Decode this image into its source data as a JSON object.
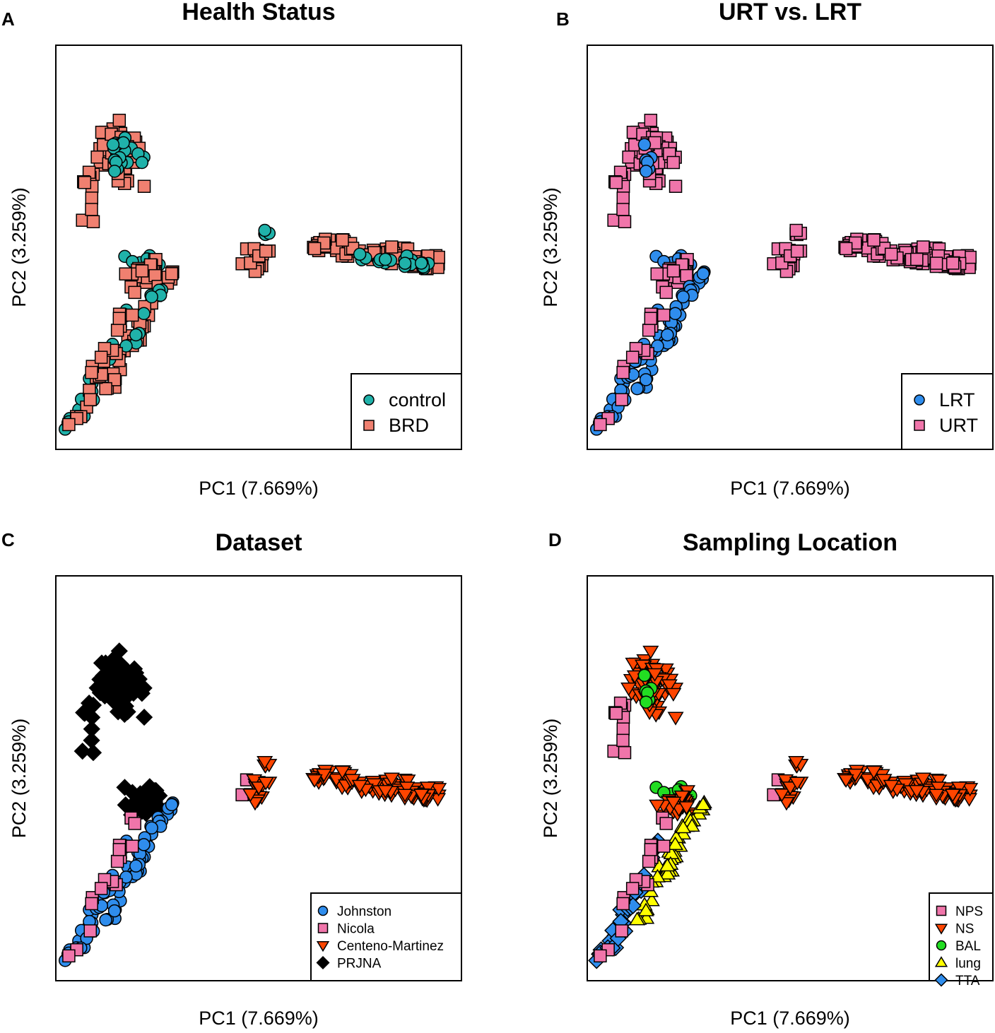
{
  "axes": {
    "xlabel": "PC1 (7.669%)",
    "ylabel": "PC2 (3.259%)"
  },
  "colors": {
    "control": "#20b2aa",
    "BRD": "#f08070",
    "LRT": "#2f8ded",
    "URT": "#f075aa",
    "Johnston": "#2f8ded",
    "Nicola": "#f075aa",
    "Centeno-Martinez": "#ff4500",
    "PRJNA": "#000000",
    "NPS": "#f075aa",
    "NS": "#ff4500",
    "BAL": "#22dd22",
    "lung": "#ffff00",
    "TTA": "#2f8ded"
  },
  "chart_data": [
    {
      "type": "scatter",
      "panel": "A",
      "title": "Health Status",
      "xlabel": "PC1 (7.669%)",
      "ylabel": "PC2 (3.259%)",
      "xlim": [
        0,
        100
      ],
      "ylim": [
        0,
        100
      ],
      "legend_position": "bottom-right",
      "series": [
        {
          "name": "control",
          "shape": "circle"
        },
        {
          "name": "BRD",
          "shape": "square"
        }
      ]
    },
    {
      "type": "scatter",
      "panel": "B",
      "title": "URT vs. LRT",
      "xlabel": "PC1 (7.669%)",
      "ylabel": "PC2 (3.259%)",
      "xlim": [
        0,
        100
      ],
      "ylim": [
        0,
        100
      ],
      "legend_position": "bottom-right",
      "series": [
        {
          "name": "LRT",
          "shape": "circle"
        },
        {
          "name": "URT",
          "shape": "square"
        }
      ]
    },
    {
      "type": "scatter",
      "panel": "C",
      "title": "Dataset",
      "xlabel": "PC1 (7.669%)",
      "ylabel": "PC2 (3.259%)",
      "xlim": [
        0,
        100
      ],
      "ylim": [
        0,
        100
      ],
      "legend_position": "bottom-right",
      "series": [
        {
          "name": "Johnston",
          "shape": "circle"
        },
        {
          "name": "Nicola",
          "shape": "square"
        },
        {
          "name": "Centeno-Martinez",
          "shape": "triangle-down"
        },
        {
          "name": "PRJNA",
          "shape": "diamond"
        }
      ]
    },
    {
      "type": "scatter",
      "panel": "D",
      "title": "Sampling Location",
      "xlabel": "PC1 (7.669%)",
      "ylabel": "PC2 (3.259%)",
      "xlim": [
        0,
        100
      ],
      "ylim": [
        0,
        100
      ],
      "legend_position": "bottom-right",
      "series": [
        {
          "name": "NPS",
          "shape": "square"
        },
        {
          "name": "NS",
          "shape": "triangle-down"
        },
        {
          "name": "BAL",
          "shape": "circle"
        },
        {
          "name": "lung",
          "shape": "triangle-up"
        },
        {
          "name": "TTA",
          "shape": "diamond"
        }
      ]
    }
  ]
}
